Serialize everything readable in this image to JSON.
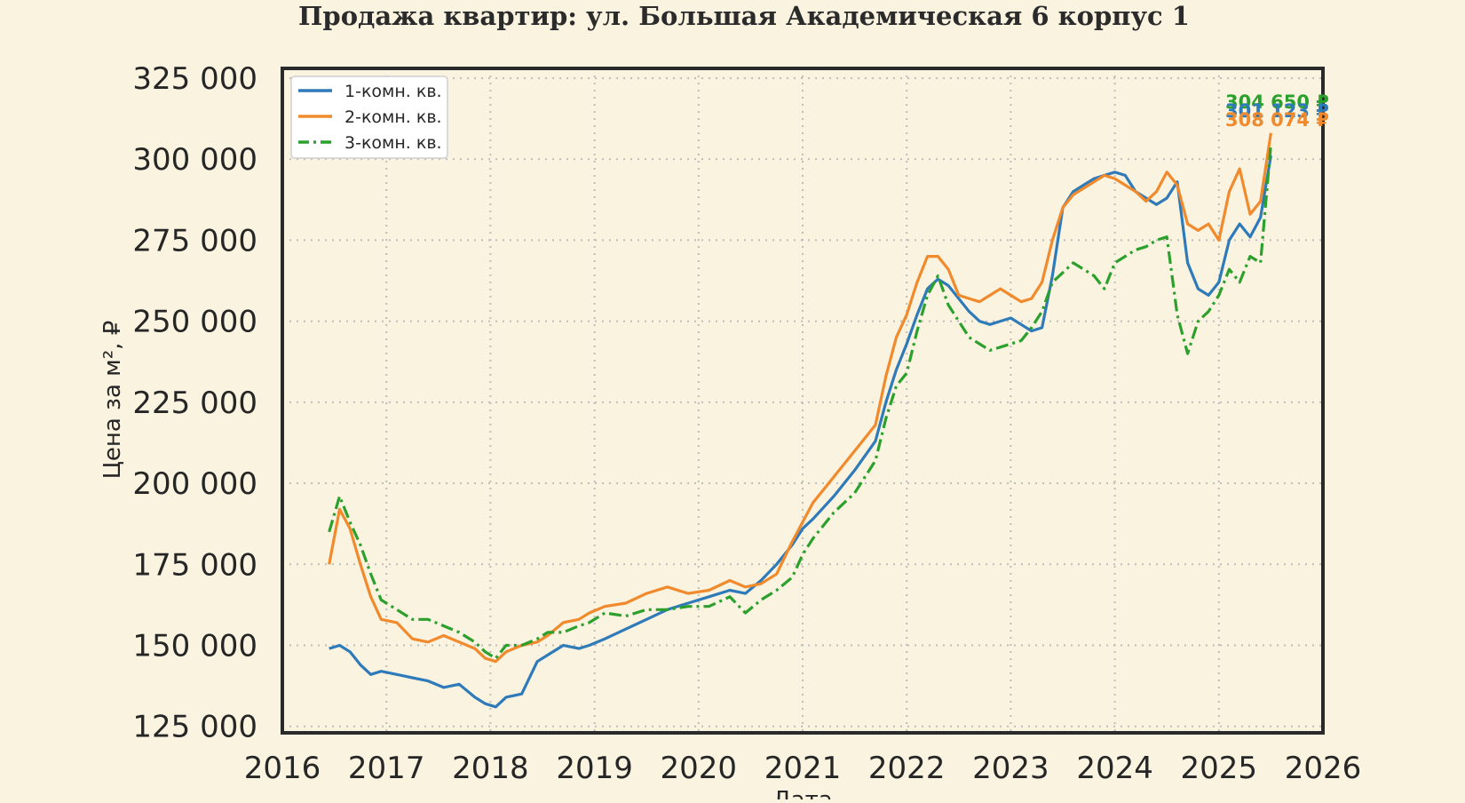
{
  "chart_data": {
    "type": "line",
    "title": "Продажа квартир: ул. Большая Академическая 6 корпус 1",
    "xlabel": "Дата",
    "ylabel": "Цена за м², ₽",
    "xlim": [
      2016,
      2026
    ],
    "ylim": [
      123000,
      328000
    ],
    "grid": true,
    "legend_position": "top-left",
    "x_ticks": [
      2016,
      2017,
      2018,
      2019,
      2020,
      2021,
      2022,
      2023,
      2024,
      2025,
      2026
    ],
    "x_tick_labels": [
      "2016",
      "2017",
      "2018",
      "2019",
      "2020",
      "2021",
      "2022",
      "2023",
      "2024",
      "2025",
      "2026"
    ],
    "y_ticks": [
      125000,
      150000,
      175000,
      200000,
      225000,
      250000,
      275000,
      300000,
      325000
    ],
    "y_tick_labels": [
      "125 000",
      "150 000",
      "175 000",
      "200 000",
      "225 000",
      "250 000",
      "275 000",
      "300 000",
      "325 000"
    ],
    "series": [
      {
        "name": "1-комн. кв.",
        "color": "#2f7ab8",
        "style": "solid",
        "end_label": "301 123 ₽",
        "x": [
          2016.45,
          2016.55,
          2016.65,
          2016.75,
          2016.85,
          2016.95,
          2017.1,
          2017.25,
          2017.4,
          2017.55,
          2017.7,
          2017.85,
          2017.95,
          2018.05,
          2018.15,
          2018.3,
          2018.45,
          2018.55,
          2018.7,
          2018.85,
          2018.95,
          2019.1,
          2019.3,
          2019.5,
          2019.7,
          2019.9,
          2020.1,
          2020.3,
          2020.45,
          2020.6,
          2020.75,
          2020.9,
          2021.0,
          2021.1,
          2021.3,
          2021.5,
          2021.7,
          2021.8,
          2021.9,
          2022.0,
          2022.1,
          2022.2,
          2022.3,
          2022.4,
          2022.5,
          2022.6,
          2022.7,
          2022.8,
          2022.9,
          2023.0,
          2023.1,
          2023.2,
          2023.3,
          2023.4,
          2023.5,
          2023.6,
          2023.7,
          2023.8,
          2023.9,
          2024.0,
          2024.1,
          2024.2,
          2024.3,
          2024.4,
          2024.5,
          2024.6,
          2024.7,
          2024.8,
          2024.9,
          2025.0,
          2025.1,
          2025.2,
          2025.3,
          2025.4,
          2025.5
        ],
        "y": [
          149000,
          150000,
          148000,
          144000,
          141000,
          142000,
          141000,
          140000,
          139000,
          137000,
          138000,
          134000,
          132000,
          131000,
          134000,
          135000,
          145000,
          147000,
          150000,
          149000,
          150000,
          152000,
          155000,
          158000,
          161000,
          163000,
          165000,
          167000,
          166000,
          170000,
          175000,
          181000,
          186000,
          189000,
          196000,
          204000,
          213000,
          225000,
          235000,
          243000,
          252000,
          260000,
          263000,
          261000,
          257000,
          253000,
          250000,
          249000,
          250000,
          251000,
          249000,
          247000,
          248000,
          264000,
          285000,
          290000,
          292000,
          294000,
          295000,
          296000,
          295000,
          290000,
          288000,
          286000,
          288000,
          293000,
          268000,
          260000,
          258000,
          262000,
          275000,
          280000,
          276000,
          282000,
          301123
        ]
      },
      {
        "name": "2-комн. кв.",
        "color": "#f08a2c",
        "style": "solid",
        "end_label": "308 074 ₽",
        "x": [
          2016.45,
          2016.55,
          2016.65,
          2016.75,
          2016.85,
          2016.95,
          2017.1,
          2017.25,
          2017.4,
          2017.55,
          2017.7,
          2017.85,
          2017.95,
          2018.05,
          2018.15,
          2018.3,
          2018.45,
          2018.55,
          2018.7,
          2018.85,
          2018.95,
          2019.1,
          2019.3,
          2019.5,
          2019.7,
          2019.9,
          2020.1,
          2020.3,
          2020.45,
          2020.6,
          2020.75,
          2020.9,
          2021.0,
          2021.1,
          2021.3,
          2021.5,
          2021.7,
          2021.8,
          2021.9,
          2022.0,
          2022.1,
          2022.2,
          2022.3,
          2022.4,
          2022.5,
          2022.6,
          2022.7,
          2022.8,
          2022.9,
          2023.0,
          2023.1,
          2023.2,
          2023.3,
          2023.4,
          2023.5,
          2023.6,
          2023.7,
          2023.8,
          2023.9,
          2024.0,
          2024.1,
          2024.2,
          2024.3,
          2024.4,
          2024.5,
          2024.6,
          2024.7,
          2024.8,
          2024.9,
          2025.0,
          2025.1,
          2025.2,
          2025.3,
          2025.4,
          2025.5
        ],
        "y": [
          175000,
          192000,
          186000,
          175000,
          165000,
          158000,
          157000,
          152000,
          151000,
          153000,
          151000,
          149000,
          146000,
          145000,
          148000,
          150000,
          151000,
          153000,
          157000,
          158000,
          160000,
          162000,
          163000,
          166000,
          168000,
          166000,
          167000,
          170000,
          168000,
          169000,
          172000,
          182000,
          188000,
          194000,
          202000,
          210000,
          218000,
          233000,
          245000,
          252000,
          262000,
          270000,
          270000,
          266000,
          258000,
          257000,
          256000,
          258000,
          260000,
          258000,
          256000,
          257000,
          262000,
          275000,
          285000,
          289000,
          291000,
          293000,
          295000,
          294000,
          292000,
          290000,
          287000,
          290000,
          296000,
          292000,
          280000,
          278000,
          280000,
          275000,
          290000,
          297000,
          283000,
          287000,
          308074
        ]
      },
      {
        "name": "3-комн. кв.",
        "color": "#2ca02c",
        "style": "dashdot",
        "end_label": "304 650 ₽",
        "x": [
          2016.45,
          2016.55,
          2016.65,
          2016.75,
          2016.85,
          2016.95,
          2017.1,
          2017.25,
          2017.4,
          2017.55,
          2017.7,
          2017.85,
          2017.95,
          2018.05,
          2018.15,
          2018.3,
          2018.45,
          2018.55,
          2018.7,
          2018.85,
          2018.95,
          2019.1,
          2019.3,
          2019.5,
          2019.7,
          2019.9,
          2020.1,
          2020.3,
          2020.45,
          2020.6,
          2020.75,
          2020.9,
          2021.0,
          2021.1,
          2021.3,
          2021.5,
          2021.7,
          2021.8,
          2021.9,
          2022.0,
          2022.1,
          2022.2,
          2022.3,
          2022.4,
          2022.5,
          2022.6,
          2022.7,
          2022.8,
          2022.9,
          2023.0,
          2023.1,
          2023.2,
          2023.3,
          2023.4,
          2023.5,
          2023.6,
          2023.7,
          2023.8,
          2023.9,
          2024.0,
          2024.1,
          2024.2,
          2024.3,
          2024.4,
          2024.5,
          2024.6,
          2024.7,
          2024.8,
          2024.9,
          2025.0,
          2025.1,
          2025.2,
          2025.3,
          2025.4,
          2025.5
        ],
        "y": [
          185000,
          196000,
          188000,
          181000,
          172000,
          164000,
          161000,
          158000,
          158000,
          156000,
          154000,
          151000,
          148000,
          146000,
          150000,
          150000,
          152000,
          154000,
          154000,
          156000,
          157000,
          160000,
          159000,
          161000,
          161000,
          162000,
          162000,
          165000,
          160000,
          164000,
          167000,
          171000,
          178000,
          183000,
          191000,
          197000,
          207000,
          220000,
          230000,
          234000,
          247000,
          258000,
          264000,
          255000,
          250000,
          245000,
          243000,
          241000,
          242000,
          243000,
          244000,
          248000,
          253000,
          262000,
          265000,
          268000,
          266000,
          264000,
          260000,
          268000,
          270000,
          272000,
          273000,
          275000,
          276000,
          252000,
          240000,
          250000,
          253000,
          258000,
          266000,
          262000,
          270000,
          268000,
          304650
        ]
      }
    ]
  }
}
